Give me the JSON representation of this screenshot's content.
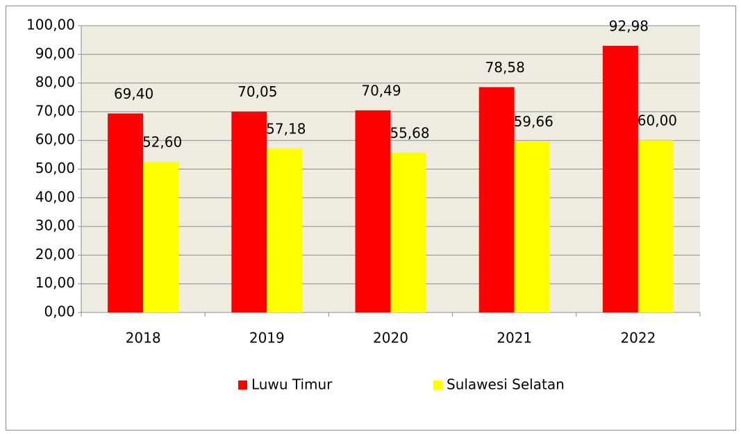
{
  "chart_data": {
    "type": "bar",
    "categories": [
      "2018",
      "2019",
      "2020",
      "2021",
      "2022"
    ],
    "series": [
      {
        "name": "Luwu Timur",
        "color": "#ff0000",
        "values": [
          69.4,
          70.05,
          70.49,
          78.58,
          92.98
        ],
        "value_labels": [
          "69,40",
          "70,05",
          "70,49",
          "78,58",
          "92,98"
        ]
      },
      {
        "name": "Sulawesi Selatan",
        "color": "#ffff00",
        "values": [
          52.6,
          57.18,
          55.68,
          59.66,
          60.0
        ],
        "value_labels": [
          "52,60",
          "57,18",
          "55,68",
          "59,66",
          "60,00"
        ]
      }
    ],
    "ylim": [
      0,
      100
    ],
    "yticks": [
      {
        "value": 0,
        "label": "0,00"
      },
      {
        "value": 10,
        "label": "10,00"
      },
      {
        "value": 20,
        "label": "20,00"
      },
      {
        "value": 30,
        "label": "30,00"
      },
      {
        "value": 40,
        "label": "40,00"
      },
      {
        "value": 50,
        "label": "50,00"
      },
      {
        "value": 60,
        "label": "60,00"
      },
      {
        "value": 70,
        "label": "70,00"
      },
      {
        "value": 80,
        "label": "80,00"
      },
      {
        "value": 90,
        "label": "90,00"
      },
      {
        "value": 100,
        "label": "100,00"
      }
    ],
    "grid": true,
    "legend": "bottom"
  }
}
